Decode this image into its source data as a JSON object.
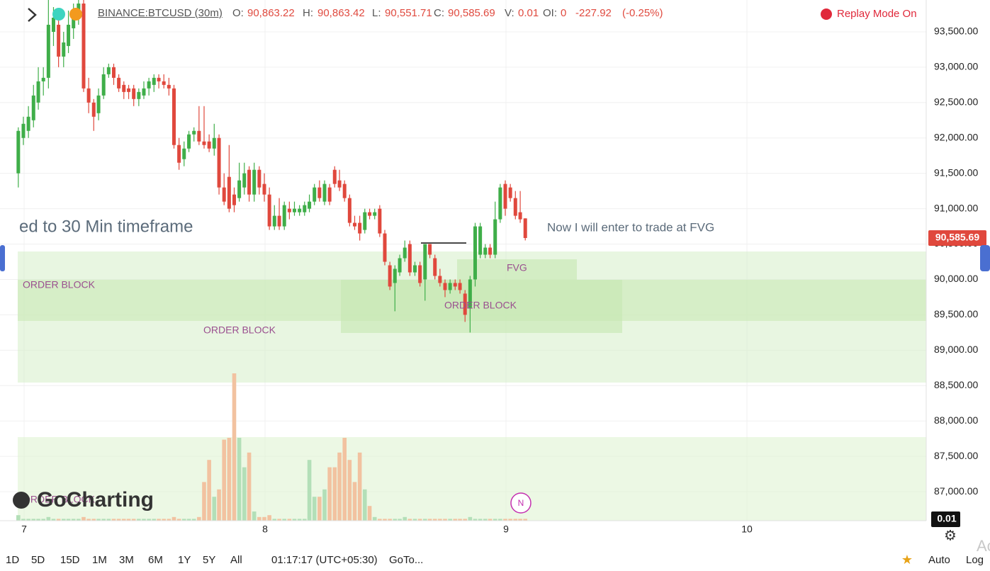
{
  "header": {
    "symbol": "BINANCE:BTCUSD (30m)",
    "o_label": "O:",
    "o": "90,863.22",
    "h_label": "H:",
    "h": "90,863.42",
    "l_label": "L:",
    "l": "90,551.71",
    "c_label": "C:",
    "c": "90,585.69",
    "v_label": "V:",
    "v": "0.01",
    "oi_label": "OI:",
    "oi": "0",
    "change": "-227.92",
    "change_pct": "(-0.25%)",
    "replay": "Replay Mode On"
  },
  "annotations": {
    "left_note": "ed to 30 Min timeframe",
    "right_note": "Now I will enter to trade at FVG",
    "fvg": "FVG",
    "ob1": "ORDER BLOCK",
    "ob2": "ORDER BLOCK",
    "ob3": "ORDER BLOCK",
    "ob4": "ORDER BLOCK",
    "logo": "GoCharting",
    "news": "N",
    "watermark": "Ac"
  },
  "toolbar": {
    "ranges": [
      "1D",
      "5D",
      "15D",
      "1M",
      "3M",
      "6M",
      "1Y",
      "5Y",
      "All"
    ],
    "time": "01:17:17 (UTC+05:30)",
    "goto": "GoTo...",
    "auto": "Auto",
    "log": "Log"
  },
  "chart_data": {
    "type": "candlestick",
    "up_color": "#3fae49",
    "down_color": "#e0483d",
    "volume_up_color": "#b3dfb8",
    "volume_down_color": "#f2c2a0",
    "x": [
      6.976,
      6.997,
      7.018,
      7.039,
      7.059,
      7.08,
      7.101,
      7.122,
      7.143,
      7.164,
      7.184,
      7.205,
      7.226,
      7.247,
      7.268,
      7.289,
      7.309,
      7.33,
      7.351,
      7.372,
      7.393,
      7.414,
      7.434,
      7.455,
      7.476,
      7.497,
      7.518,
      7.539,
      7.559,
      7.58,
      7.601,
      7.622,
      7.643,
      7.664,
      7.684,
      7.705,
      7.726,
      7.747,
      7.768,
      7.789,
      7.809,
      7.83,
      7.851,
      7.872,
      7.893,
      7.914,
      7.934,
      7.955,
      7.976,
      7.997,
      8.018,
      8.039,
      8.059,
      8.08,
      8.101,
      8.122,
      8.143,
      8.164,
      8.184,
      8.205,
      8.226,
      8.247,
      8.268,
      8.289,
      8.309,
      8.33,
      8.351,
      8.372,
      8.393,
      8.414,
      8.434,
      8.455,
      8.476,
      8.497,
      8.518,
      8.539,
      8.559,
      8.58,
      8.601,
      8.622,
      8.643,
      8.664,
      8.684,
      8.705,
      8.726,
      8.747,
      8.768,
      8.789,
      8.809,
      8.83,
      8.851,
      8.872,
      8.893,
      8.914,
      8.934,
      8.955,
      8.976,
      8.997,
      9.018,
      9.039,
      9.059,
      9.08
    ],
    "open": [
      91500,
      92000,
      92100,
      92250,
      92500,
      92800,
      92850,
      93500,
      93600,
      93150,
      93300,
      93550,
      93750,
      93900,
      92700,
      92500,
      92350,
      92600,
      92900,
      93000,
      92850,
      92750,
      92700,
      92700,
      92550,
      92600,
      92700,
      92750,
      92850,
      92800,
      92750,
      92700,
      91900,
      91700,
      91850,
      92050,
      92100,
      91950,
      91950,
      91850,
      92000,
      91300,
      91450,
      91200,
      91150,
      91300,
      91550,
      91200,
      91550,
      91350,
      91200,
      90750,
      90900,
      90750,
      91000,
      90950,
      90950,
      90950,
      91000,
      91100,
      91300,
      91100,
      91300,
      91550,
      91400,
      91350,
      91150,
      90800,
      90800,
      90700,
      90950,
      90900,
      91000,
      90650,
      90200,
      89950,
      90100,
      90300,
      90500,
      90100,
      90200,
      90000,
      90500,
      90300,
      90050,
      89950,
      89850,
      89950,
      89950,
      89800,
      89600,
      90000,
      90350,
      90350,
      90450,
      90350,
      90850,
      91350,
      91300,
      91150,
      90950,
      90863.22
    ],
    "high": [
      92150,
      92300,
      92450,
      92750,
      93000,
      93000,
      93950,
      93850,
      93700,
      93500,
      93800,
      93900,
      93950,
      93950,
      92850,
      92550,
      92700,
      93000,
      93050,
      93050,
      92900,
      92800,
      92750,
      92750,
      92700,
      92800,
      92850,
      92900,
      92900,
      92900,
      92850,
      92750,
      92000,
      91950,
      92100,
      92150,
      92450,
      92450,
      92050,
      92200,
      92050,
      91500,
      91900,
      91300,
      91650,
      91650,
      91600,
      91650,
      91600,
      91500,
      91300,
      91050,
      91150,
      91100,
      91100,
      91100,
      91050,
      91100,
      91200,
      91350,
      91400,
      91400,
      91350,
      91600,
      91550,
      91400,
      91200,
      90900,
      90900,
      91000,
      91000,
      91000,
      91050,
      90700,
      90250,
      90200,
      90350,
      90550,
      90550,
      90250,
      90250,
      90500,
      90500,
      90350,
      90150,
      90000,
      90000,
      90000,
      90000,
      89850,
      90050,
      90800,
      90800,
      90500,
      90500,
      91100,
      91350,
      91400,
      91350,
      91250,
      91250,
      90863.42
    ],
    "low": [
      91300,
      91900,
      92000,
      92150,
      92400,
      92600,
      92700,
      93300,
      93000,
      93000,
      93200,
      93400,
      93600,
      92650,
      92350,
      92100,
      92250,
      92550,
      92850,
      92750,
      92650,
      92550,
      92550,
      92450,
      92450,
      92550,
      92600,
      92650,
      92700,
      92700,
      92600,
      91850,
      91550,
      91600,
      91800,
      91950,
      91900,
      91850,
      91800,
      91750,
      91200,
      91050,
      90950,
      90950,
      91100,
      91200,
      91100,
      91100,
      91200,
      91100,
      90700,
      90700,
      90700,
      90700,
      90850,
      90900,
      90900,
      90900,
      90950,
      91050,
      91100,
      91050,
      91050,
      91300,
      91250,
      91100,
      90750,
      90700,
      90550,
      90650,
      90850,
      90850,
      90600,
      90200,
      89850,
      89550,
      90050,
      90250,
      90050,
      90050,
      89900,
      89700,
      90300,
      90000,
      89900,
      89750,
      89800,
      89850,
      89800,
      89400,
      89250,
      89900,
      90300,
      90300,
      90300,
      90300,
      90800,
      90900,
      91100,
      90850,
      90800,
      90551.71
    ],
    "close": [
      92100,
      92200,
      92300,
      92600,
      92800,
      92850,
      93600,
      93700,
      93150,
      93350,
      93600,
      93800,
      93900,
      92700,
      92500,
      92300,
      92600,
      92900,
      93000,
      92850,
      92700,
      92650,
      92650,
      92550,
      92650,
      92700,
      92800,
      92850,
      92800,
      92750,
      92700,
      91900,
      91650,
      91850,
      92050,
      92100,
      91950,
      91900,
      91850,
      92000,
      91300,
      91100,
      91000,
      91050,
      91400,
      91500,
      91200,
      91550,
      91300,
      91200,
      90750,
      90900,
      90750,
      91050,
      90950,
      91000,
      91000,
      91050,
      91100,
      91300,
      91150,
      91350,
      91100,
      91350,
      91300,
      91150,
      90800,
      90750,
      90650,
      90950,
      90900,
      90950,
      90650,
      90250,
      89900,
      90150,
      90300,
      90450,
      90100,
      90200,
      89950,
      90500,
      90350,
      90050,
      89950,
      89850,
      89950,
      89900,
      89850,
      89500,
      90000,
      90750,
      90750,
      90450,
      90350,
      90850,
      91300,
      91000,
      91150,
      90900,
      90850,
      90585.69
    ],
    "volume": [
      0.03,
      0.01,
      0.01,
      0.01,
      0.01,
      0.01,
      0.02,
      0.01,
      0.01,
      0.01,
      0.01,
      0.01,
      0.01,
      0.02,
      0.01,
      0.01,
      0.01,
      0.01,
      0.01,
      0.01,
      0.01,
      0.01,
      0.01,
      0.01,
      0.01,
      0.01,
      0.01,
      0.01,
      0.01,
      0.01,
      0.01,
      0.02,
      0.01,
      0.01,
      0.01,
      0.01,
      0.02,
      0.21,
      0.33,
      0.13,
      0.17,
      0.44,
      0.45,
      0.8,
      0.45,
      0.29,
      0.37,
      0.05,
      0.02,
      0.02,
      0.03,
      0.01,
      0.01,
      0.01,
      0.01,
      0.01,
      0.01,
      0.01,
      0.33,
      0.13,
      0.13,
      0.17,
      0.29,
      0.29,
      0.37,
      0.45,
      0.33,
      0.21,
      0.37,
      0.17,
      0.08,
      0.02,
      0.01,
      0.01,
      0.01,
      0.01,
      0.01,
      0.02,
      0.01,
      0.01,
      0.01,
      0.01,
      0.01,
      0.01,
      0.01,
      0.01,
      0.01,
      0.01,
      0.01,
      0.01,
      0.02,
      0.01,
      0.01,
      0.01,
      0.01,
      0.01,
      0.01,
      0.01,
      0.01,
      0.01,
      0.01,
      0.01
    ],
    "volume_lim": [
      0,
      0.8
    ],
    "xlim": [
      6.9,
      10.744
    ],
    "xticks": [
      7,
      8,
      9,
      10
    ],
    "ylim": [
      86590,
      93950
    ],
    "yticks": [
      {
        "value": 87000,
        "label": "87,000.00"
      },
      {
        "value": 87500,
        "label": "87,500.00"
      },
      {
        "value": 88000,
        "label": "88,000.00"
      },
      {
        "value": 88500,
        "label": "88,500.00"
      },
      {
        "value": 89000,
        "label": "89,000.00"
      },
      {
        "value": 89500,
        "label": "89,500.00"
      },
      {
        "value": 90000,
        "label": "90,000.00"
      },
      {
        "value": 90500,
        "label": "90,500.00"
      },
      {
        "value": 91000,
        "label": "91,000.00"
      },
      {
        "value": 91500,
        "label": "91,500.00"
      },
      {
        "value": 92000,
        "label": "92,000.00"
      },
      {
        "value": 92500,
        "label": "92,500.00"
      },
      {
        "value": 93000,
        "label": "93,000.00"
      },
      {
        "value": 93500,
        "label": "93,500.00"
      }
    ],
    "price_tag": {
      "value": 90585.69,
      "label": "90,585.69"
    },
    "grid": true
  }
}
